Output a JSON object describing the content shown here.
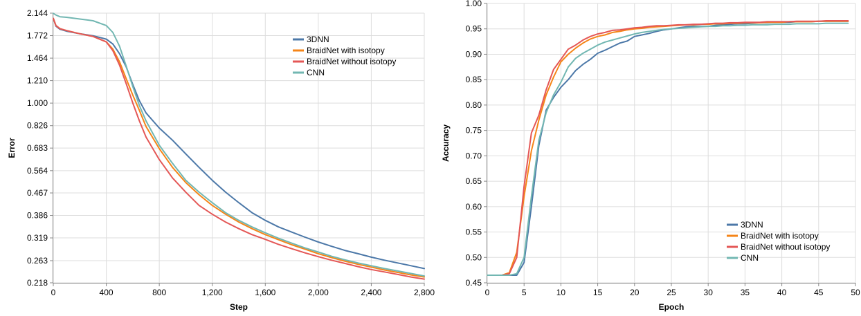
{
  "chart_data": [
    {
      "type": "line",
      "title": "",
      "xlabel": "Step",
      "ylabel": "Error",
      "scale_y": "log",
      "xlim": [
        0,
        2800
      ],
      "ylim": [
        0.218,
        2.144
      ],
      "x_ticks": [
        "0",
        "400",
        "800",
        "1,200",
        "1,600",
        "2,000",
        "2,400",
        "2,800"
      ],
      "y_ticks": [
        "2.144",
        "1.772",
        "1.464",
        "1.210",
        "1.000",
        "0.826",
        "0.683",
        "0.564",
        "0.467",
        "0.386",
        "0.319",
        "0.263",
        "0.218"
      ],
      "grid": true,
      "legend_position": "top-right",
      "series": [
        {
          "name": "3DNN",
          "color": "#4c78a8",
          "x": [
            0,
            20,
            50,
            100,
            200,
            300,
            400,
            450,
            500,
            550,
            600,
            650,
            700,
            800,
            900,
            1000,
            1100,
            1200,
            1300,
            1400,
            1500,
            1600,
            1700,
            1800,
            1900,
            2000,
            2100,
            2200,
            2300,
            2400,
            2500,
            2600,
            2700,
            2800
          ],
          "y": [
            2.05,
            1.92,
            1.87,
            1.84,
            1.8,
            1.77,
            1.72,
            1.65,
            1.52,
            1.36,
            1.17,
            1.02,
            0.92,
            0.81,
            0.73,
            0.65,
            0.58,
            0.52,
            0.47,
            0.43,
            0.395,
            0.37,
            0.35,
            0.335,
            0.321,
            0.308,
            0.297,
            0.287,
            0.279,
            0.271,
            0.264,
            0.258,
            0.252,
            0.246
          ]
        },
        {
          "name": "BraidNet with isotopy",
          "color": "#f58518",
          "x": [
            0,
            20,
            50,
            100,
            200,
            300,
            400,
            450,
            500,
            550,
            600,
            650,
            700,
            800,
            900,
            1000,
            1100,
            1200,
            1300,
            1400,
            1500,
            1600,
            1700,
            1800,
            1900,
            2000,
            2100,
            2200,
            2300,
            2400,
            2500,
            2600,
            2700,
            2800
          ],
          "y": [
            2.05,
            1.93,
            1.88,
            1.85,
            1.8,
            1.76,
            1.68,
            1.58,
            1.42,
            1.23,
            1.07,
            0.94,
            0.82,
            0.68,
            0.58,
            0.51,
            0.46,
            0.42,
            0.39,
            0.365,
            0.345,
            0.328,
            0.314,
            0.301,
            0.29,
            0.279,
            0.27,
            0.262,
            0.255,
            0.249,
            0.243,
            0.238,
            0.233,
            0.229
          ]
        },
        {
          "name": "BraidNet without isotopy",
          "color": "#e45756",
          "x": [
            0,
            20,
            50,
            100,
            200,
            300,
            400,
            450,
            500,
            550,
            600,
            650,
            700,
            800,
            900,
            1000,
            1100,
            1200,
            1300,
            1400,
            1500,
            1600,
            1700,
            1800,
            1900,
            2000,
            2100,
            2200,
            2300,
            2400,
            2500,
            2600,
            2700,
            2800
          ],
          "y": [
            2.05,
            1.93,
            1.88,
            1.85,
            1.8,
            1.76,
            1.68,
            1.56,
            1.38,
            1.18,
            1.0,
            0.86,
            0.75,
            0.62,
            0.53,
            0.47,
            0.42,
            0.39,
            0.365,
            0.345,
            0.328,
            0.315,
            0.302,
            0.291,
            0.281,
            0.272,
            0.264,
            0.257,
            0.25,
            0.244,
            0.239,
            0.234,
            0.229,
            0.225
          ]
        },
        {
          "name": "CNN",
          "color": "#72b7b2",
          "x": [
            0,
            20,
            50,
            100,
            200,
            300,
            400,
            450,
            500,
            550,
            600,
            650,
            700,
            800,
            900,
            1000,
            1100,
            1200,
            1300,
            1400,
            1500,
            1600,
            1700,
            1800,
            1900,
            2000,
            2100,
            2200,
            2300,
            2400,
            2500,
            2600,
            2700,
            2800
          ],
          "y": [
            2.14,
            2.11,
            2.08,
            2.07,
            2.04,
            2.01,
            1.93,
            1.82,
            1.62,
            1.37,
            1.15,
            0.98,
            0.86,
            0.7,
            0.6,
            0.52,
            0.47,
            0.43,
            0.395,
            0.37,
            0.35,
            0.333,
            0.318,
            0.305,
            0.293,
            0.283,
            0.273,
            0.265,
            0.258,
            0.252,
            0.246,
            0.241,
            0.236,
            0.231
          ]
        }
      ]
    },
    {
      "type": "line",
      "title": "",
      "xlabel": "Epoch",
      "ylabel": "Accuracy",
      "xlim": [
        0,
        50
      ],
      "ylim": [
        0.45,
        1.0
      ],
      "x_ticks": [
        "0",
        "5",
        "10",
        "15",
        "20",
        "25",
        "30",
        "35",
        "40",
        "45",
        "50"
      ],
      "y_ticks": [
        "1.00",
        "0.95",
        "0.90",
        "0.85",
        "0.80",
        "0.75",
        "0.70",
        "0.65",
        "0.60",
        "0.55",
        "0.50",
        "0.45"
      ],
      "grid": true,
      "legend_position": "bottom-right",
      "series": [
        {
          "name": "3DNN",
          "color": "#4c78a8",
          "x": [
            0,
            1,
            2,
            3,
            4,
            5,
            6,
            7,
            8,
            9,
            10,
            11,
            12,
            13,
            14,
            15,
            16,
            17,
            18,
            19,
            20,
            21,
            22,
            23,
            24,
            25,
            26,
            27,
            28,
            29,
            30,
            31,
            32,
            33,
            34,
            35,
            36,
            37,
            38,
            39,
            40,
            41,
            42,
            43,
            44,
            45,
            46,
            47,
            48,
            49
          ],
          "y": [
            0.465,
            0.465,
            0.465,
            0.465,
            0.465,
            0.49,
            0.6,
            0.72,
            0.79,
            0.815,
            0.835,
            0.85,
            0.868,
            0.88,
            0.89,
            0.902,
            0.908,
            0.915,
            0.922,
            0.926,
            0.935,
            0.938,
            0.941,
            0.945,
            0.948,
            0.95,
            0.952,
            0.954,
            0.955,
            0.955,
            0.955,
            0.957,
            0.958,
            0.959,
            0.96,
            0.96,
            0.961,
            0.962,
            0.962,
            0.963,
            0.963,
            0.963,
            0.964,
            0.964,
            0.964,
            0.965,
            0.965,
            0.965,
            0.965,
            0.965
          ]
        },
        {
          "name": "BraidNet with isotopy",
          "color": "#f58518",
          "x": [
            0,
            1,
            2,
            3,
            4,
            5,
            6,
            7,
            8,
            9,
            10,
            11,
            12,
            13,
            14,
            15,
            16,
            17,
            18,
            19,
            20,
            21,
            22,
            23,
            24,
            25,
            26,
            27,
            28,
            29,
            30,
            31,
            32,
            33,
            34,
            35,
            36,
            37,
            38,
            39,
            40,
            41,
            42,
            43,
            44,
            45,
            46,
            47,
            48,
            49
          ],
          "y": [
            0.465,
            0.465,
            0.465,
            0.47,
            0.51,
            0.62,
            0.71,
            0.77,
            0.82,
            0.855,
            0.885,
            0.9,
            0.912,
            0.922,
            0.93,
            0.935,
            0.938,
            0.943,
            0.945,
            0.948,
            0.95,
            0.951,
            0.953,
            0.954,
            0.955,
            0.956,
            0.957,
            0.958,
            0.958,
            0.959,
            0.959,
            0.96,
            0.96,
            0.961,
            0.961,
            0.962,
            0.962,
            0.962,
            0.963,
            0.963,
            0.963,
            0.964,
            0.964,
            0.964,
            0.964,
            0.965,
            0.965,
            0.965,
            0.965,
            0.965
          ]
        },
        {
          "name": "BraidNet without isotopy",
          "color": "#e45756",
          "x": [
            0,
            1,
            2,
            3,
            4,
            5,
            6,
            7,
            8,
            9,
            10,
            11,
            12,
            13,
            14,
            15,
            16,
            17,
            18,
            19,
            20,
            21,
            22,
            23,
            24,
            25,
            26,
            27,
            28,
            29,
            30,
            31,
            32,
            33,
            34,
            35,
            36,
            37,
            38,
            39,
            40,
            41,
            42,
            43,
            44,
            45,
            46,
            47,
            48,
            49
          ],
          "y": [
            0.465,
            0.465,
            0.465,
            0.468,
            0.5,
            0.64,
            0.745,
            0.78,
            0.83,
            0.87,
            0.89,
            0.91,
            0.918,
            0.928,
            0.935,
            0.94,
            0.943,
            0.947,
            0.948,
            0.95,
            0.952,
            0.953,
            0.955,
            0.956,
            0.956,
            0.957,
            0.958,
            0.958,
            0.959,
            0.959,
            0.96,
            0.961,
            0.961,
            0.962,
            0.962,
            0.963,
            0.963,
            0.963,
            0.964,
            0.964,
            0.964,
            0.964,
            0.965,
            0.965,
            0.965,
            0.965,
            0.966,
            0.966,
            0.966,
            0.966
          ]
        },
        {
          "name": "CNN",
          "color": "#72b7b2",
          "x": [
            0,
            1,
            2,
            3,
            4,
            5,
            6,
            7,
            8,
            9,
            10,
            11,
            12,
            13,
            14,
            15,
            16,
            17,
            18,
            19,
            20,
            21,
            22,
            23,
            24,
            25,
            26,
            27,
            28,
            29,
            30,
            31,
            32,
            33,
            34,
            35,
            36,
            37,
            38,
            39,
            40,
            41,
            42,
            43,
            44,
            45,
            46,
            47,
            48,
            49
          ],
          "y": [
            0.465,
            0.465,
            0.465,
            0.465,
            0.468,
            0.5,
            0.62,
            0.73,
            0.785,
            0.82,
            0.845,
            0.875,
            0.892,
            0.902,
            0.91,
            0.918,
            0.924,
            0.928,
            0.932,
            0.936,
            0.94,
            0.943,
            0.945,
            0.947,
            0.949,
            0.95,
            0.951,
            0.952,
            0.953,
            0.954,
            0.955,
            0.955,
            0.956,
            0.956,
            0.957,
            0.957,
            0.958,
            0.958,
            0.958,
            0.959,
            0.959,
            0.959,
            0.96,
            0.96,
            0.96,
            0.96,
            0.961,
            0.961,
            0.961,
            0.961
          ]
        }
      ]
    }
  ]
}
